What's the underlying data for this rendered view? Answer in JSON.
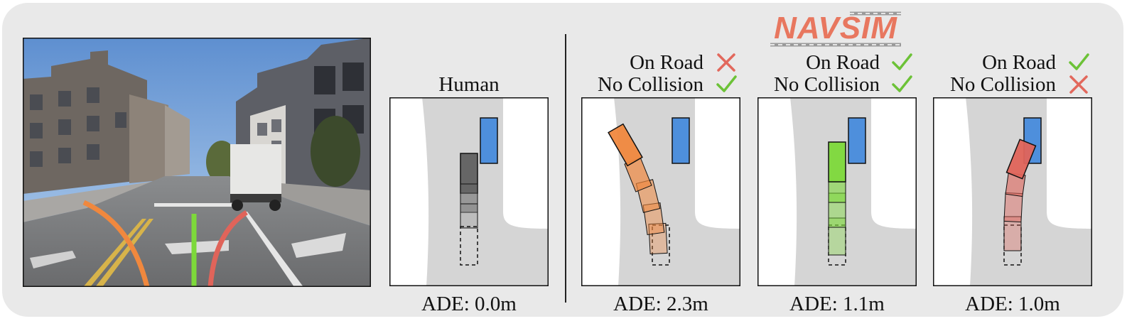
{
  "logo": {
    "text": "NAVSIM"
  },
  "panels": [
    {
      "id": "human",
      "title": "Human",
      "ade": "ADE: 0.0m"
    },
    {
      "id": "orange",
      "on_road_label": "On Road",
      "no_collision_label": "No Collision",
      "on_road_ok": false,
      "no_collision_ok": true,
      "ade": "ADE: 2.3m",
      "color": "#f0883e"
    },
    {
      "id": "green",
      "on_road_label": "On Road",
      "no_collision_label": "No Collision",
      "on_road_ok": true,
      "no_collision_ok": true,
      "ade": "ADE: 1.1m",
      "color": "#7dd93a"
    },
    {
      "id": "red",
      "on_road_label": "On Road",
      "no_collision_label": "No Collision",
      "on_road_ok": true,
      "no_collision_ok": false,
      "ade": "ADE: 1.0m",
      "color": "#e0645a"
    }
  ],
  "colors": {
    "check": "#6cc237",
    "cross": "#e2685c",
    "obstacle": "#4e8fdc",
    "human": "#666666",
    "road": "#d5d5d5",
    "offroad": "#ffffff"
  },
  "icons": [
    "check-icon",
    "cross-icon"
  ]
}
